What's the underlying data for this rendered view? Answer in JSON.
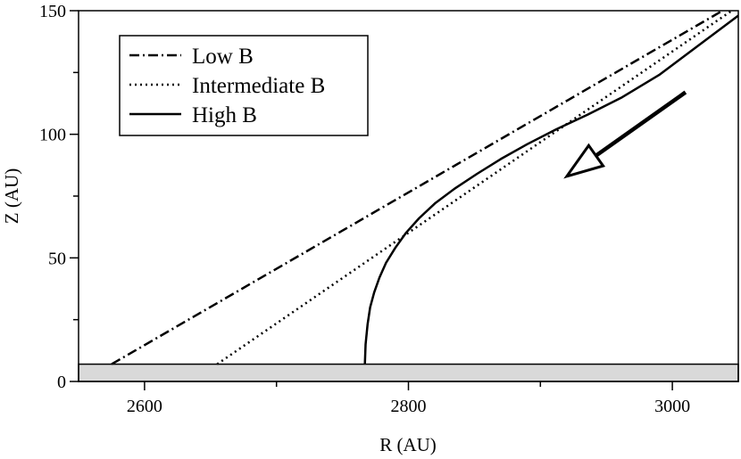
{
  "chart_data": {
    "type": "line",
    "title": "",
    "xlabel": "R (AU)",
    "ylabel": "Z (AU)",
    "xlim": [
      2550,
      3050
    ],
    "ylim": [
      0,
      150
    ],
    "xticks": [
      2600,
      2800,
      3000
    ],
    "xticks_minor": [
      2700,
      2900
    ],
    "yticks": [
      0,
      50,
      100,
      150
    ],
    "x_tick_labels": [
      "2600",
      "2800",
      "3000"
    ],
    "y_tick_labels": [
      "0",
      "50",
      "100",
      "150"
    ],
    "grid": false,
    "legend_position": "top-left",
    "disk_band": {
      "ymin": 0,
      "ymax": 7,
      "color": "#d9d9d9"
    },
    "arrow": {
      "from": [
        3010,
        117
      ],
      "to": [
        2920,
        83
      ],
      "style": "hollow-head"
    },
    "series": [
      {
        "name": "Low B",
        "style": "dash-dot",
        "color": "#000000",
        "x": [
          2575,
          3038
        ],
        "y": [
          7,
          150
        ]
      },
      {
        "name": "Intermediate B",
        "style": "dotted",
        "color": "#000000",
        "x": [
          2655,
          3045
        ],
        "y": [
          7,
          150
        ]
      },
      {
        "name": "High B",
        "style": "solid",
        "color": "#000000",
        "x": [
          2767,
          2767.5,
          2769,
          2771,
          2774,
          2778,
          2783,
          2790,
          2798,
          2808,
          2820,
          2835,
          2852,
          2870,
          2890,
          2912,
          2936,
          2962,
          2990,
          3020,
          3050
        ],
        "y": [
          7,
          15,
          23,
          30,
          36,
          42,
          48,
          54,
          60,
          66,
          72,
          78,
          84,
          90,
          96,
          102,
          108,
          115,
          124,
          136,
          148
        ]
      }
    ]
  }
}
